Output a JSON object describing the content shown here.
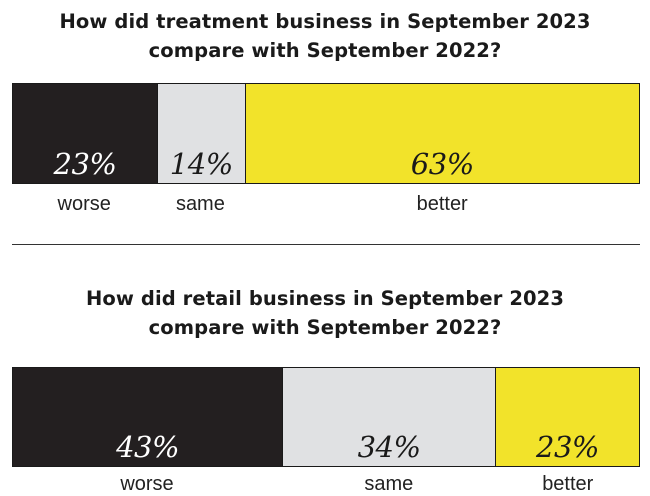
{
  "colors": {
    "worse": "#231f20",
    "same": "#e0e1e3",
    "better": "#f2e32a",
    "text_dark": "#1a1a1a",
    "text_light": "#ffffff"
  },
  "chart_data": [
    {
      "type": "bar",
      "orientation": "horizontal-stacked-100",
      "title": "How did treatment business in September 2023 compare with September 2022?",
      "title_lines": [
        "How did treatment business in September 2023",
        "compare with September 2022?"
      ],
      "categories": [
        "worse",
        "same",
        "better"
      ],
      "values": [
        23,
        14,
        63
      ],
      "value_labels": [
        "23%",
        "14%",
        "63%"
      ],
      "unit": "%",
      "xlim": [
        0,
        100
      ],
      "legend": "none",
      "grid": false
    },
    {
      "type": "bar",
      "orientation": "horizontal-stacked-100",
      "title": "How did retail business in September 2023 compare with September 2022?",
      "title_lines": [
        "How did retail business in September 2023",
        "compare with September 2022?"
      ],
      "categories": [
        "worse",
        "same",
        "better"
      ],
      "values": [
        43,
        34,
        23
      ],
      "value_labels": [
        "43%",
        "34%",
        "23%"
      ],
      "unit": "%",
      "xlim": [
        0,
        100
      ],
      "legend": "none",
      "grid": false
    }
  ]
}
